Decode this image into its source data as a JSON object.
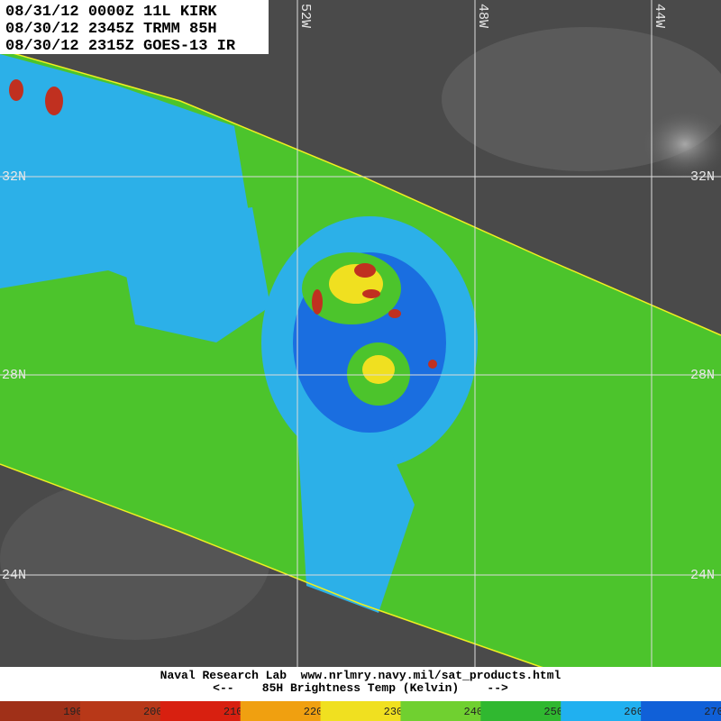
{
  "header": {
    "lines": [
      "08/31/12 0000Z 11L KIRK",
      "08/30/12 2345Z TRMM 85H",
      "08/30/12 2315Z GOES-13 IR"
    ]
  },
  "grid": {
    "longitudes": [
      "52W",
      "48W",
      "44W"
    ],
    "latitudes": [
      "32N",
      "28N",
      "24N"
    ]
  },
  "footer": {
    "lines": [
      "Naval Research Lab  www.nrlmry.navy.mil/sat_products.html",
      "<--    85H Brightness Temp (Kelvin)    -->"
    ]
  },
  "colorbar": {
    "labels": [
      190,
      200,
      210,
      220,
      230,
      240,
      250,
      260,
      270
    ]
  }
}
